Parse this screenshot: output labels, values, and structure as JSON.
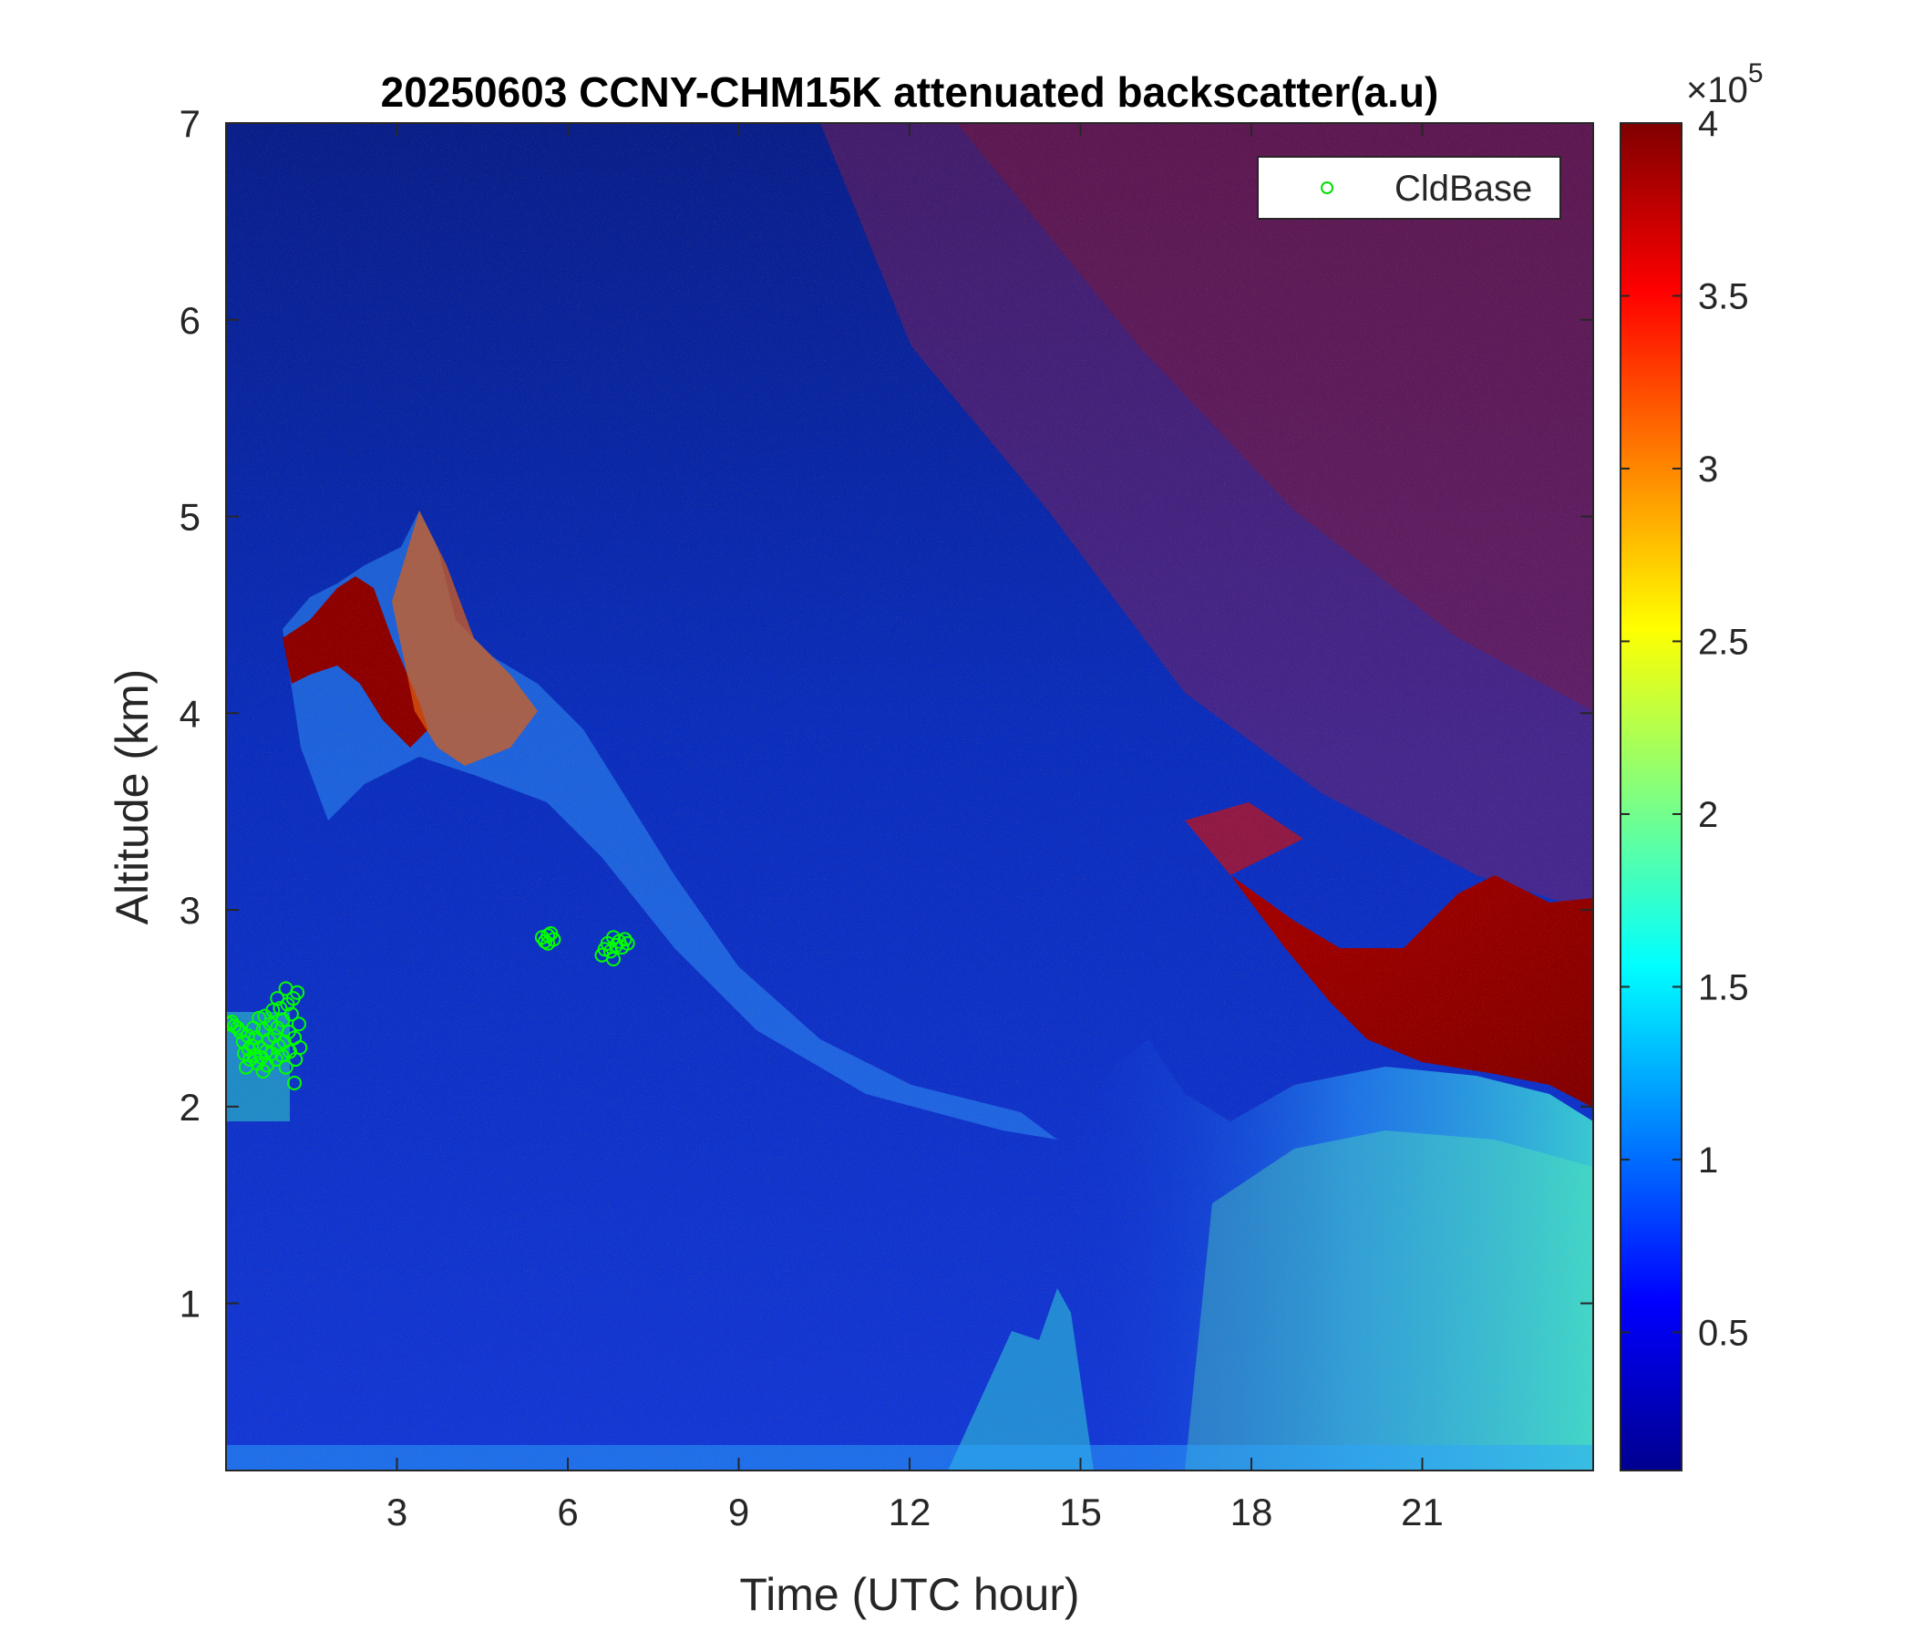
{
  "chart_data": {
    "type": "heatmap",
    "title": "20250603 CCNY-CHM15K attenuated backscatter(a.u)",
    "xlabel": "Time (UTC hour)",
    "ylabel": "Altitude (km)",
    "xlim": [
      0,
      24
    ],
    "ylim": [
      0.15,
      7
    ],
    "xticks": [
      3,
      6,
      9,
      12,
      15,
      18,
      21
    ],
    "xtick_labels": [
      "3",
      "6",
      "9",
      "12",
      "15",
      "18",
      "21"
    ],
    "yticks": [
      1,
      2,
      3,
      4,
      5,
      6,
      7
    ],
    "ytick_labels": [
      "1",
      "2",
      "3",
      "4",
      "5",
      "6",
      "7"
    ],
    "colormap": "jet",
    "colorbar": {
      "range": [
        0.1,
        4
      ],
      "ticks": [
        0.5,
        1,
        1.5,
        2,
        2.5,
        3,
        3.5,
        4
      ],
      "tick_labels": [
        "0.5",
        "1",
        "1.5",
        "2",
        "2.5",
        "3",
        "3.5",
        "4"
      ],
      "multiplier_base": "×10",
      "multiplier_exp": "5"
    },
    "legend": {
      "position": "top-right",
      "entries": [
        "CldBase"
      ]
    },
    "series": [
      {
        "name": "CldBase",
        "marker": "circle",
        "color": "#00ff00",
        "points": [
          [
            0.05,
            2.42
          ],
          [
            0.1,
            2.43
          ],
          [
            0.15,
            2.41
          ],
          [
            0.2,
            2.4
          ],
          [
            0.25,
            2.38
          ],
          [
            0.3,
            2.33
          ],
          [
            0.32,
            2.27
          ],
          [
            0.35,
            2.2
          ],
          [
            0.38,
            2.36
          ],
          [
            0.4,
            2.29
          ],
          [
            0.42,
            2.24
          ],
          [
            0.45,
            2.31
          ],
          [
            0.48,
            2.4
          ],
          [
            0.5,
            2.26
          ],
          [
            0.52,
            2.35
          ],
          [
            0.55,
            2.22
          ],
          [
            0.58,
            2.45
          ],
          [
            0.6,
            2.3
          ],
          [
            0.62,
            2.25
          ],
          [
            0.65,
            2.39
          ],
          [
            0.68,
            2.46
          ],
          [
            0.7,
            2.28
          ],
          [
            0.72,
            2.21
          ],
          [
            0.75,
            2.34
          ],
          [
            0.78,
            2.42
          ],
          [
            0.8,
            2.27
          ],
          [
            0.82,
            2.49
          ],
          [
            0.85,
            2.36
          ],
          [
            0.88,
            2.24
          ],
          [
            0.9,
            2.4
          ],
          [
            0.92,
            2.31
          ],
          [
            0.95,
            2.5
          ],
          [
            0.98,
            2.26
          ],
          [
            1.0,
            2.44
          ],
          [
            1.02,
            2.33
          ],
          [
            1.05,
            2.2
          ],
          [
            1.08,
            2.52
          ],
          [
            1.1,
            2.38
          ],
          [
            1.12,
            2.28
          ],
          [
            1.15,
            2.47
          ],
          [
            1.18,
            2.55
          ],
          [
            1.2,
            2.35
          ],
          [
            1.22,
            2.24
          ],
          [
            1.25,
            2.58
          ],
          [
            1.28,
            2.42
          ],
          [
            1.3,
            2.3
          ],
          [
            1.2,
            2.12
          ],
          [
            0.65,
            2.18
          ],
          [
            0.9,
            2.55
          ],
          [
            1.05,
            2.6
          ],
          [
            5.55,
            2.86
          ],
          [
            5.6,
            2.84
          ],
          [
            5.65,
            2.87
          ],
          [
            5.7,
            2.88
          ],
          [
            5.75,
            2.85
          ],
          [
            5.65,
            2.83
          ],
          [
            6.6,
            2.77
          ],
          [
            6.65,
            2.8
          ],
          [
            6.7,
            2.83
          ],
          [
            6.75,
            2.79
          ],
          [
            6.8,
            2.86
          ],
          [
            6.85,
            2.82
          ],
          [
            6.9,
            2.84
          ],
          [
            6.95,
            2.81
          ],
          [
            7.0,
            2.85
          ],
          [
            7.05,
            2.83
          ],
          [
            6.8,
            2.75
          ]
        ]
      }
    ]
  }
}
